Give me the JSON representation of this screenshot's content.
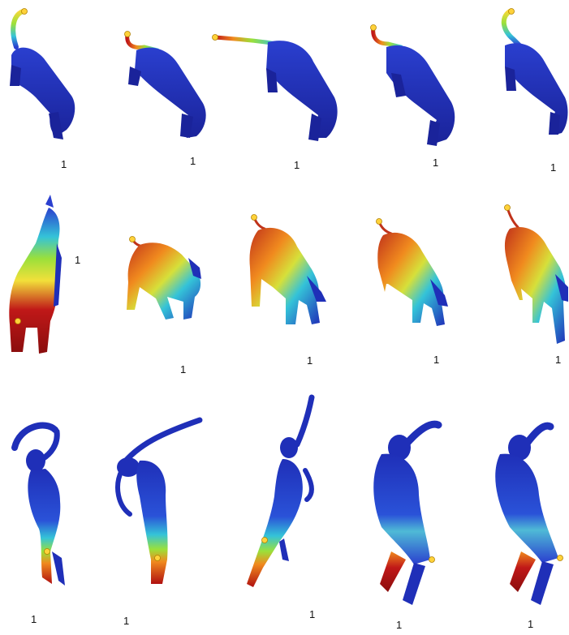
{
  "labels": {
    "row1": [
      "1",
      "1",
      "1",
      "1",
      "1"
    ],
    "row2": [
      "1",
      "1",
      "1",
      "1",
      "1"
    ],
    "row3": [
      "1",
      "1",
      "1",
      "1",
      "1"
    ]
  },
  "colors": {
    "background": "#ffffff",
    "cold": "#1f2fb8",
    "cyan": "#34c3d8",
    "green": "#9be03a",
    "yellow": "#f2e03a",
    "orange": "#f08a1e",
    "hot": "#b01010",
    "marker": "#ffd23a"
  },
  "figures": [
    {
      "row": 1,
      "subject": "cat",
      "colormap": "heat",
      "highlight": "tail"
    },
    {
      "row": 2,
      "subject": "horse",
      "colormap": "heat",
      "highlight": "tail and rear"
    },
    {
      "row": 3,
      "subject": "human figure",
      "colormap": "heat",
      "highlight": "legs"
    }
  ]
}
